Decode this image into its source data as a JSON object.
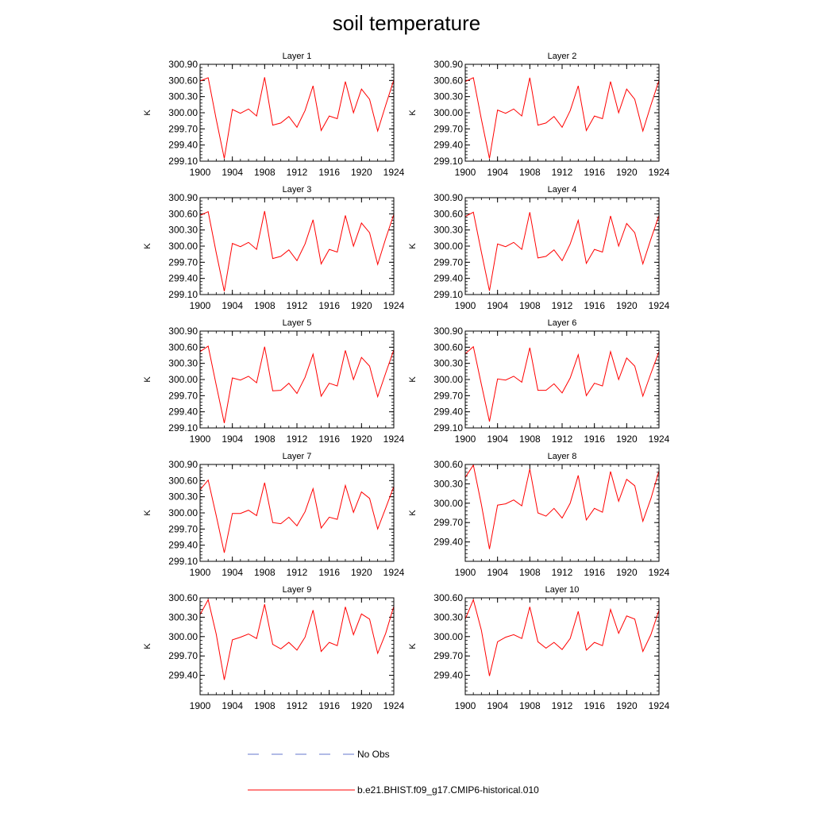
{
  "title": "soil temperature",
  "chart_data": [
    {
      "type": "line",
      "title": "Layer 1",
      "ylabel": "K",
      "xlim": [
        1900,
        1924
      ],
      "ylim": [
        299.1,
        300.9
      ],
      "x_ticks": [
        1900,
        1904,
        1908,
        1912,
        1916,
        1920,
        1924
      ],
      "y_ticks": [
        "299.10",
        "299.40",
        "299.70",
        "300.00",
        "300.30",
        "300.60",
        "300.90"
      ],
      "series": [
        {
          "name": "b.e21.BHIST.f09_g17.CMIP6-historical.010",
          "color": "#ff0000",
          "x": [
            1900,
            1901,
            1902,
            1903,
            1904,
            1905,
            1906,
            1907,
            1908,
            1909,
            1910,
            1911,
            1912,
            1913,
            1914,
            1915,
            1916,
            1917,
            1918,
            1919,
            1920,
            1921,
            1922,
            1923,
            1924
          ],
          "y": [
            300.59,
            300.65,
            299.88,
            299.15,
            300.06,
            299.99,
            300.07,
            299.94,
            300.66,
            299.77,
            299.81,
            299.93,
            299.73,
            300.04,
            300.5,
            299.67,
            299.94,
            299.89,
            300.58,
            300.0,
            300.44,
            300.25,
            299.66,
            300.14,
            300.61
          ]
        }
      ]
    },
    {
      "type": "line",
      "title": "Layer 2",
      "ylabel": "K",
      "xlim": [
        1900,
        1924
      ],
      "ylim": [
        299.1,
        300.9
      ],
      "x_ticks": [
        1900,
        1904,
        1908,
        1912,
        1916,
        1920,
        1924
      ],
      "y_ticks": [
        "299.10",
        "299.40",
        "299.70",
        "300.00",
        "300.30",
        "300.60",
        "300.90"
      ],
      "series": [
        {
          "name": "b.e21.BHIST.f09_g17.CMIP6-historical.010",
          "color": "#ff0000",
          "x": [
            1900,
            1901,
            1902,
            1903,
            1904,
            1905,
            1906,
            1907,
            1908,
            1909,
            1910,
            1911,
            1912,
            1913,
            1914,
            1915,
            1916,
            1917,
            1918,
            1919,
            1920,
            1921,
            1922,
            1923,
            1924
          ],
          "y": [
            300.58,
            300.65,
            299.88,
            299.15,
            300.05,
            299.99,
            300.07,
            299.94,
            300.65,
            299.77,
            299.81,
            299.93,
            299.73,
            300.04,
            300.5,
            299.67,
            299.94,
            299.89,
            300.58,
            300.0,
            300.44,
            300.25,
            299.66,
            300.14,
            300.6
          ]
        }
      ]
    },
    {
      "type": "line",
      "title": "Layer 3",
      "ylabel": "K",
      "xlim": [
        1900,
        1924
      ],
      "ylim": [
        299.1,
        300.9
      ],
      "x_ticks": [
        1900,
        1904,
        1908,
        1912,
        1916,
        1920,
        1924
      ],
      "y_ticks": [
        "299.10",
        "299.40",
        "299.70",
        "300.00",
        "300.30",
        "300.60",
        "300.90"
      ],
      "series": [
        {
          "name": "b.e21.BHIST.f09_g17.CMIP6-historical.010",
          "color": "#ff0000",
          "x": [
            1900,
            1901,
            1902,
            1903,
            1904,
            1905,
            1906,
            1907,
            1908,
            1909,
            1910,
            1911,
            1912,
            1913,
            1914,
            1915,
            1916,
            1917,
            1918,
            1919,
            1920,
            1921,
            1922,
            1923,
            1924
          ],
          "y": [
            300.57,
            300.64,
            299.88,
            299.16,
            300.05,
            299.99,
            300.07,
            299.94,
            300.65,
            299.77,
            299.81,
            299.93,
            299.73,
            300.04,
            300.49,
            299.67,
            299.94,
            299.89,
            300.57,
            300.0,
            300.43,
            300.25,
            299.66,
            300.14,
            300.59
          ]
        }
      ]
    },
    {
      "type": "line",
      "title": "Layer 4",
      "ylabel": "K",
      "xlim": [
        1900,
        1924
      ],
      "ylim": [
        299.1,
        300.9
      ],
      "x_ticks": [
        1900,
        1904,
        1908,
        1912,
        1916,
        1920,
        1924
      ],
      "y_ticks": [
        "299.10",
        "299.40",
        "299.70",
        "300.00",
        "300.30",
        "300.60",
        "300.90"
      ],
      "series": [
        {
          "name": "b.e21.BHIST.f09_g17.CMIP6-historical.010",
          "color": "#ff0000",
          "x": [
            1900,
            1901,
            1902,
            1903,
            1904,
            1905,
            1906,
            1907,
            1908,
            1909,
            1910,
            1911,
            1912,
            1913,
            1914,
            1915,
            1916,
            1917,
            1918,
            1919,
            1920,
            1921,
            1922,
            1923,
            1924
          ],
          "y": [
            300.55,
            300.63,
            299.89,
            299.17,
            300.04,
            299.99,
            300.07,
            299.94,
            300.63,
            299.78,
            299.81,
            299.93,
            299.73,
            300.04,
            300.48,
            299.68,
            299.94,
            299.89,
            300.56,
            300.0,
            300.42,
            300.25,
            299.67,
            300.13,
            300.57
          ]
        }
      ]
    },
    {
      "type": "line",
      "title": "Layer 5",
      "ylabel": "K",
      "xlim": [
        1900,
        1924
      ],
      "ylim": [
        299.1,
        300.9
      ],
      "x_ticks": [
        1900,
        1904,
        1908,
        1912,
        1916,
        1920,
        1924
      ],
      "y_ticks": [
        "299.10",
        "299.40",
        "299.70",
        "300.00",
        "300.30",
        "300.60",
        "300.90"
      ],
      "series": [
        {
          "name": "b.e21.BHIST.f09_g17.CMIP6-historical.010",
          "color": "#ff0000",
          "x": [
            1900,
            1901,
            1902,
            1903,
            1904,
            1905,
            1906,
            1907,
            1908,
            1909,
            1910,
            1911,
            1912,
            1913,
            1914,
            1915,
            1916,
            1917,
            1918,
            1919,
            1920,
            1921,
            1922,
            1923,
            1924
          ],
          "y": [
            300.52,
            300.62,
            299.9,
            299.19,
            300.03,
            299.99,
            300.06,
            299.94,
            300.61,
            299.79,
            299.8,
            299.93,
            299.74,
            300.04,
            300.47,
            299.69,
            299.93,
            299.88,
            300.54,
            300.0,
            300.41,
            300.25,
            299.68,
            300.12,
            300.55
          ]
        }
      ]
    },
    {
      "type": "line",
      "title": "Layer 6",
      "ylabel": "K",
      "xlim": [
        1900,
        1924
      ],
      "ylim": [
        299.1,
        300.9
      ],
      "x_ticks": [
        1900,
        1904,
        1908,
        1912,
        1916,
        1920,
        1924
      ],
      "y_ticks": [
        "299.10",
        "299.40",
        "299.70",
        "300.00",
        "300.30",
        "300.60",
        "300.90"
      ],
      "series": [
        {
          "name": "b.e21.BHIST.f09_g17.CMIP6-historical.010",
          "color": "#ff0000",
          "x": [
            1900,
            1901,
            1902,
            1903,
            1904,
            1905,
            1906,
            1907,
            1908,
            1909,
            1910,
            1911,
            1912,
            1913,
            1914,
            1915,
            1916,
            1917,
            1918,
            1919,
            1920,
            1921,
            1922,
            1923,
            1924
          ],
          "y": [
            300.48,
            300.61,
            299.91,
            299.22,
            300.01,
            299.99,
            300.06,
            299.95,
            300.59,
            299.8,
            299.8,
            299.92,
            299.75,
            300.03,
            300.46,
            299.7,
            299.93,
            299.88,
            300.52,
            300.0,
            300.4,
            300.25,
            299.69,
            300.11,
            300.52
          ]
        }
      ]
    },
    {
      "type": "line",
      "title": "Layer 7",
      "ylabel": "K",
      "xlim": [
        1900,
        1924
      ],
      "ylim": [
        299.1,
        300.9
      ],
      "x_ticks": [
        1900,
        1904,
        1908,
        1912,
        1916,
        1920,
        1924
      ],
      "y_ticks": [
        "299.10",
        "299.40",
        "299.70",
        "300.00",
        "300.30",
        "300.60",
        "300.90"
      ],
      "series": [
        {
          "name": "b.e21.BHIST.f09_g17.CMIP6-historical.010",
          "color": "#ff0000",
          "x": [
            1900,
            1901,
            1902,
            1903,
            1904,
            1905,
            1906,
            1907,
            1908,
            1909,
            1910,
            1911,
            1912,
            1913,
            1914,
            1915,
            1916,
            1917,
            1918,
            1919,
            1920,
            1921,
            1922,
            1923,
            1924
          ],
          "y": [
            300.43,
            300.61,
            299.95,
            299.26,
            299.99,
            299.99,
            300.05,
            299.95,
            300.56,
            299.82,
            299.8,
            299.92,
            299.76,
            300.02,
            300.45,
            299.72,
            299.92,
            299.88,
            300.51,
            300.01,
            300.39,
            300.27,
            299.7,
            300.09,
            300.49
          ]
        }
      ]
    },
    {
      "type": "line",
      "title": "Layer 8",
      "ylabel": "K",
      "xlim": [
        1900,
        1924
      ],
      "ylim": [
        299.1,
        300.6
      ],
      "x_ticks": [
        1900,
        1904,
        1908,
        1912,
        1916,
        1920,
        1924
      ],
      "y_ticks": [
        "299.40",
        "299.70",
        "300.00",
        "300.30",
        "300.60"
      ],
      "series": [
        {
          "name": "b.e21.BHIST.f09_g17.CMIP6-historical.010",
          "color": "#ff0000",
          "x": [
            1900,
            1901,
            1902,
            1903,
            1904,
            1905,
            1906,
            1907,
            1908,
            1909,
            1910,
            1911,
            1912,
            1913,
            1914,
            1915,
            1916,
            1917,
            1918,
            1919,
            1920,
            1921,
            1922,
            1923,
            1924
          ],
          "y": [
            300.4,
            300.59,
            299.98,
            299.29,
            299.97,
            299.99,
            300.05,
            299.96,
            300.53,
            299.85,
            299.8,
            299.92,
            299.77,
            300.0,
            300.43,
            299.74,
            299.92,
            299.86,
            300.49,
            300.03,
            300.37,
            300.27,
            299.72,
            300.07,
            300.5
          ]
        }
      ]
    },
    {
      "type": "line",
      "title": "Layer 9",
      "ylabel": "K",
      "xlim": [
        1900,
        1924
      ],
      "ylim": [
        299.1,
        300.6
      ],
      "x_ticks": [
        1900,
        1904,
        1908,
        1912,
        1916,
        1920,
        1924
      ],
      "y_ticks": [
        "299.40",
        "299.70",
        "300.00",
        "300.30",
        "300.60"
      ],
      "series": [
        {
          "name": "b.e21.BHIST.f09_g17.CMIP6-historical.010",
          "color": "#ff0000",
          "x": [
            1900,
            1901,
            1902,
            1903,
            1904,
            1905,
            1906,
            1907,
            1908,
            1909,
            1910,
            1911,
            1912,
            1913,
            1914,
            1915,
            1916,
            1917,
            1918,
            1919,
            1920,
            1921,
            1922,
            1923,
            1924
          ],
          "y": [
            300.34,
            300.57,
            300.04,
            299.33,
            299.95,
            299.99,
            300.04,
            299.97,
            300.5,
            299.88,
            299.81,
            299.91,
            299.79,
            299.99,
            300.41,
            299.77,
            299.91,
            299.86,
            300.46,
            300.03,
            300.35,
            300.27,
            299.74,
            300.05,
            300.47
          ]
        }
      ]
    },
    {
      "type": "line",
      "title": "Layer 10",
      "ylabel": "K",
      "xlim": [
        1900,
        1924
      ],
      "ylim": [
        299.1,
        300.6
      ],
      "x_ticks": [
        1900,
        1904,
        1908,
        1912,
        1916,
        1920,
        1924
      ],
      "y_ticks": [
        "299.40",
        "299.70",
        "300.00",
        "300.30",
        "300.60"
      ],
      "series": [
        {
          "name": "b.e21.BHIST.f09_g17.CMIP6-historical.010",
          "color": "#ff0000",
          "x": [
            1900,
            1901,
            1902,
            1903,
            1904,
            1905,
            1906,
            1907,
            1908,
            1909,
            1910,
            1911,
            1912,
            1913,
            1914,
            1915,
            1916,
            1917,
            1918,
            1919,
            1920,
            1921,
            1922,
            1923,
            1924
          ],
          "y": [
            300.27,
            300.57,
            300.1,
            299.39,
            299.92,
            299.99,
            300.03,
            299.97,
            300.46,
            299.92,
            299.82,
            299.91,
            299.8,
            299.97,
            300.39,
            299.79,
            299.91,
            299.86,
            300.42,
            300.05,
            300.32,
            300.27,
            299.77,
            300.03,
            300.41
          ]
        }
      ]
    }
  ],
  "legend": [
    {
      "label": "No Obs",
      "color": "#6677cc",
      "style": "dashed"
    },
    {
      "label": "b.e21.BHIST.f09_g17.CMIP6-historical.010",
      "color": "#ff0000",
      "style": "solid"
    }
  ]
}
